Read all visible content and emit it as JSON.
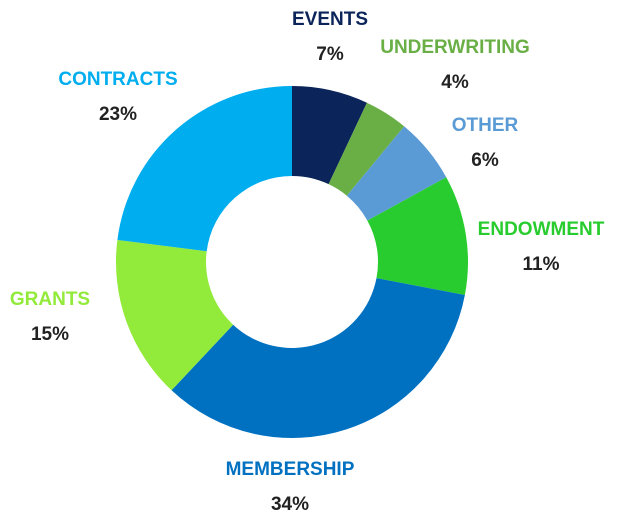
{
  "chart_data": {
    "type": "pie",
    "categories": [
      "EVENTS",
      "UNDERWRITING",
      "OTHER",
      "ENDOWMENT",
      "MEMBERSHIP",
      "GRANTS",
      "CONTRACTS"
    ],
    "values": [
      7,
      4,
      6,
      11,
      34,
      15,
      23
    ],
    "value_labels": [
      "7%",
      "4%",
      "6%",
      "11%",
      "34%",
      "15%",
      "23%"
    ],
    "colors": [
      "#0b2459",
      "#6aaf46",
      "#5b9bd5",
      "#29cc2e",
      "#0071c1",
      "#92ea3a",
      "#00adee"
    ]
  }
}
